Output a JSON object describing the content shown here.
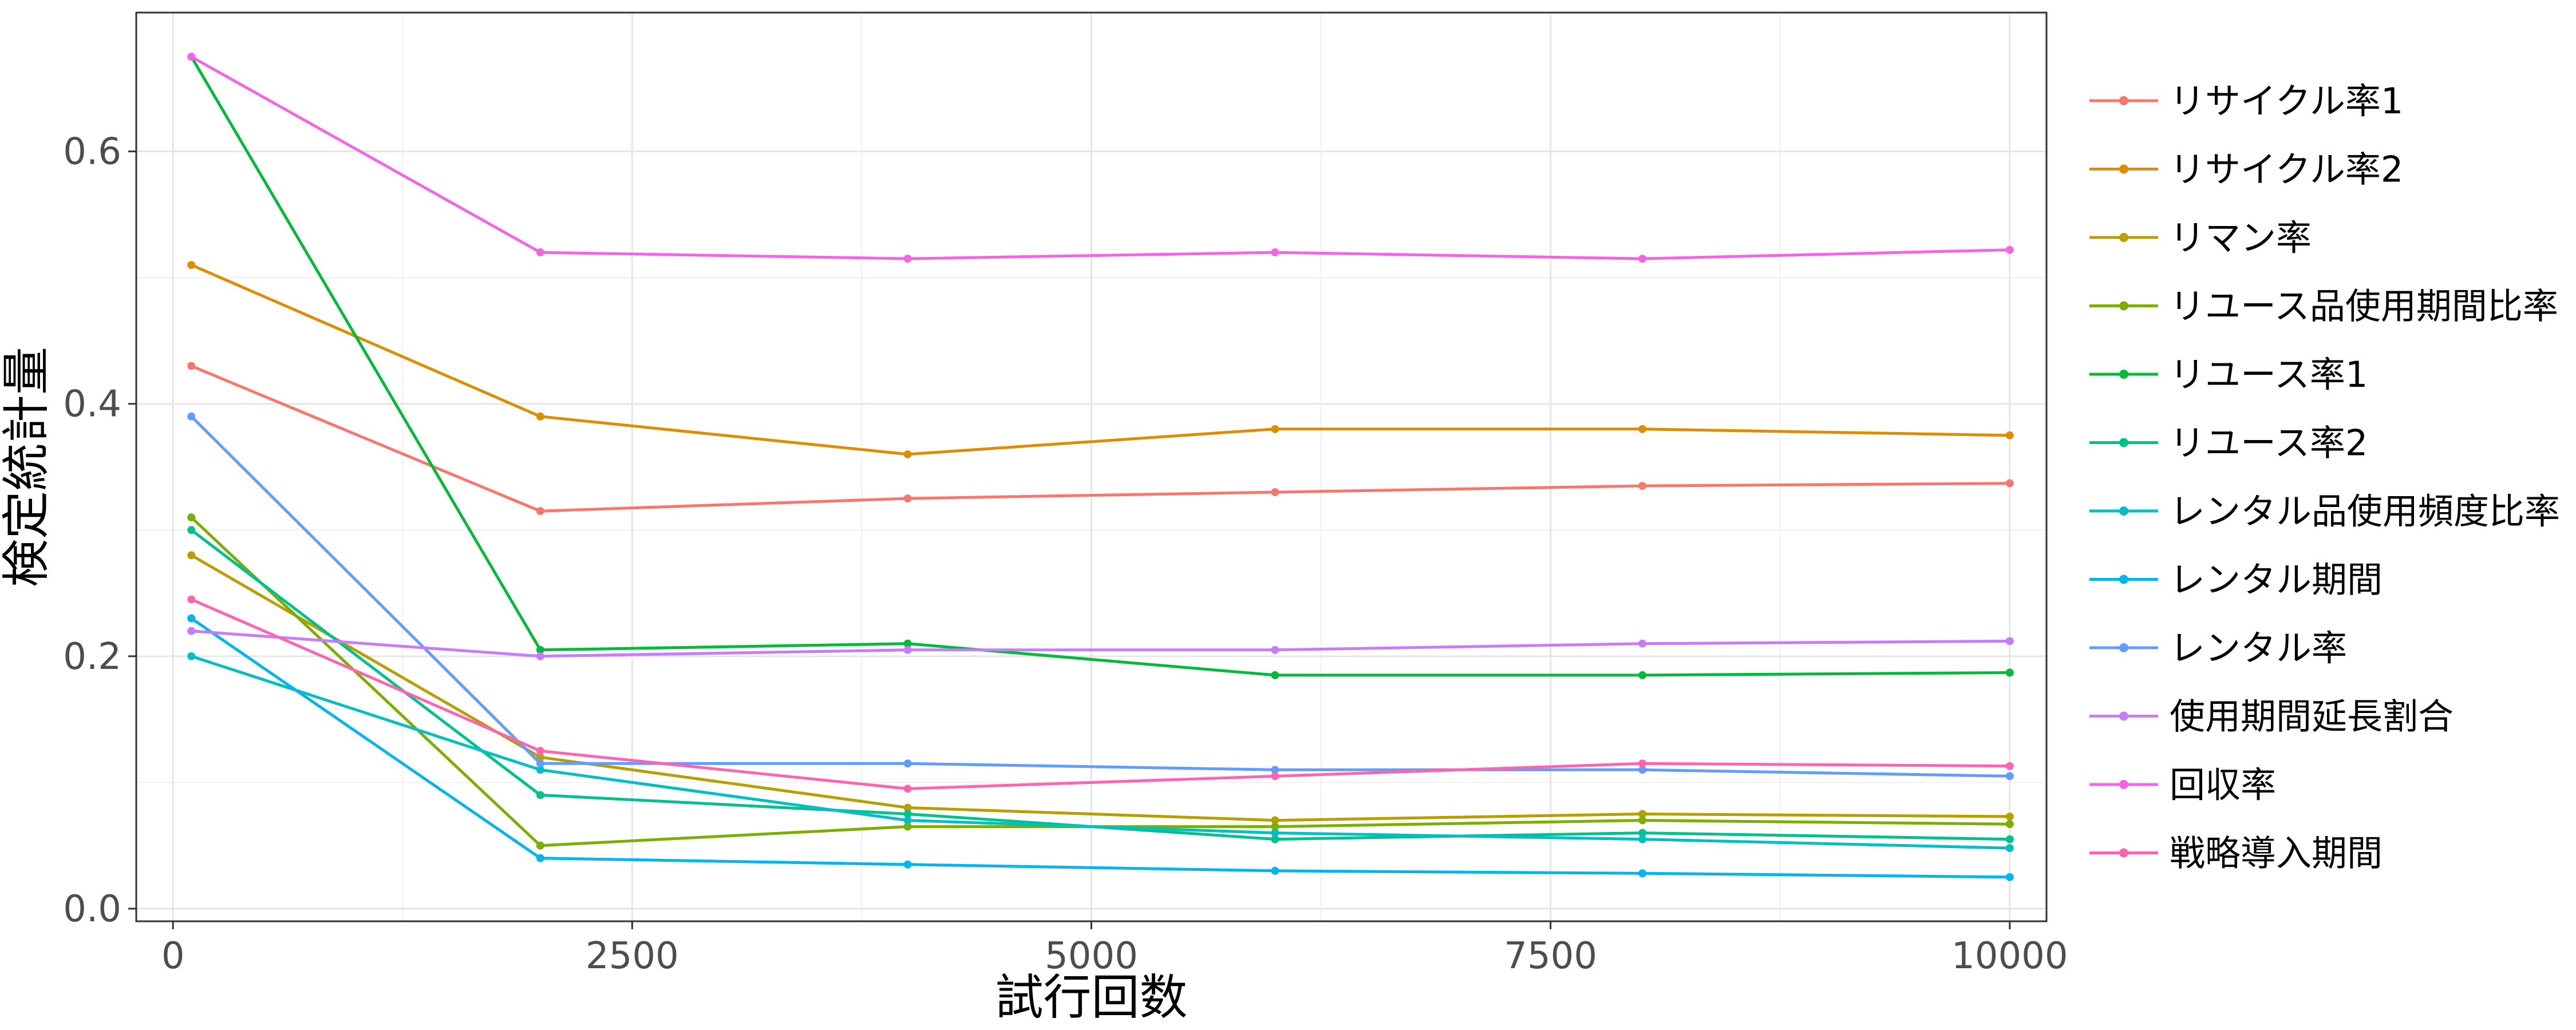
{
  "chart_data": {
    "type": "line",
    "title": "",
    "xlabel": "試行回数",
    "ylabel": "検定統計量",
    "xlim": [
      -200,
      10200
    ],
    "ylim": [
      -0.01,
      0.71
    ],
    "x_ticks": [
      0,
      2500,
      5000,
      7500,
      10000
    ],
    "x_tick_labels": [
      "0",
      "2500",
      "5000",
      "7500",
      "10000"
    ],
    "y_ticks": [
      0.0,
      0.2,
      0.4,
      0.6
    ],
    "y_tick_labels": [
      "0.0",
      "0.2",
      "0.4",
      "0.6"
    ],
    "grid": true,
    "legend_position": "right",
    "x": [
      100,
      2000,
      4000,
      6000,
      8000,
      10000
    ],
    "series": [
      {
        "name": "リサイクル率1",
        "color": "#F8766D",
        "values": [
          0.43,
          0.315,
          0.325,
          0.33,
          0.335,
          0.337
        ]
      },
      {
        "name": "リサイクル率2",
        "color": "#DE8C00",
        "values": [
          0.51,
          0.39,
          0.36,
          0.38,
          0.38,
          0.375
        ]
      },
      {
        "name": "リマン率",
        "color": "#B79F00",
        "values": [
          0.28,
          0.12,
          0.08,
          0.07,
          0.075,
          0.073
        ]
      },
      {
        "name": "リユース品使用期間比率",
        "color": "#7CAE00",
        "values": [
          0.31,
          0.05,
          0.065,
          0.065,
          0.07,
          0.067
        ]
      },
      {
        "name": "リユース率1",
        "color": "#00BA38",
        "values": [
          0.675,
          0.205,
          0.21,
          0.185,
          0.185,
          0.187
        ]
      },
      {
        "name": "リユース率2",
        "color": "#00C08B",
        "values": [
          0.3,
          0.09,
          0.075,
          0.055,
          0.06,
          0.055
        ]
      },
      {
        "name": "レンタル品使用頻度比率",
        "color": "#00BFC4",
        "values": [
          0.2,
          0.11,
          0.07,
          0.06,
          0.055,
          0.048
        ]
      },
      {
        "name": "レンタル期間",
        "color": "#00B4F0",
        "values": [
          0.23,
          0.04,
          0.035,
          0.03,
          0.028,
          0.025
        ]
      },
      {
        "name": "レンタル率",
        "color": "#619CFF",
        "values": [
          0.39,
          0.115,
          0.115,
          0.11,
          0.11,
          0.105
        ]
      },
      {
        "name": "使用期間延長割合",
        "color": "#C77CFF",
        "values": [
          0.22,
          0.2,
          0.205,
          0.205,
          0.21,
          0.212
        ]
      },
      {
        "name": "回収率",
        "color": "#F564E3",
        "values": [
          0.675,
          0.52,
          0.515,
          0.52,
          0.515,
          0.522
        ]
      },
      {
        "name": "戦略導入期間",
        "color": "#FF64B0",
        "values": [
          0.245,
          0.125,
          0.095,
          0.105,
          0.115,
          0.113
        ]
      }
    ]
  }
}
